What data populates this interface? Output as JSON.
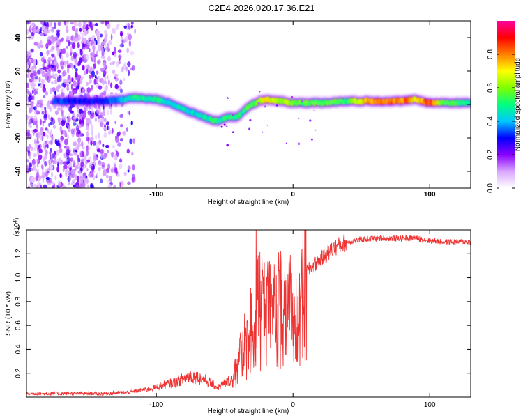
{
  "title": "C2E4.2026.020.17.36.E21",
  "chart_data": [
    {
      "type": "heatmap",
      "name": "spectrogram",
      "xlabel": "Height of straight line (km)",
      "ylabel": "Frequency (Hz)",
      "xlim": [
        -195,
        130
      ],
      "ylim": [
        -50,
        50
      ],
      "xticks": [
        "-100",
        "0",
        "100"
      ],
      "xtick_values": [
        -100,
        0,
        100
      ],
      "yticks": [
        "40",
        "20",
        "0",
        "-20",
        "-40"
      ],
      "ytick_values": [
        40,
        20,
        0,
        -20,
        -40
      ],
      "colorbar": {
        "label": "Normalized spectral amplitude",
        "range": [
          0,
          1
        ],
        "ticks": [
          "0.0",
          "0.2",
          "0.4",
          "0.6",
          "0.8"
        ],
        "tick_values": [
          0.0,
          0.2,
          0.4,
          0.6,
          0.8
        ],
        "colors": [
          "#ffffff",
          "#d9a6ff",
          "#8a00ff",
          "#0000ff",
          "#00c8ff",
          "#00ff80",
          "#80ff00",
          "#ffff00",
          "#ff8000",
          "#ff0000",
          "#ff00a0"
        ]
      },
      "ridge": {
        "x": [
          -195,
          -180,
          -160,
          -140,
          -125,
          -115,
          -100,
          -90,
          -80,
          -70,
          -60,
          -55,
          -50,
          -45,
          -40,
          -35,
          -30,
          -25,
          -20,
          -10,
          0,
          20,
          40,
          60,
          80,
          90,
          100,
          110,
          130
        ],
        "freq": [
          2,
          2,
          2,
          2,
          3,
          4,
          3,
          1,
          -3,
          -6,
          -9,
          -10,
          -8,
          -8,
          -7,
          -3,
          0,
          2,
          3,
          2,
          1,
          1,
          2,
          2,
          2,
          3,
          1,
          1,
          1
        ],
        "amplitude": [
          0.3,
          0.35,
          0.3,
          0.3,
          0.4,
          0.5,
          0.5,
          0.45,
          0.45,
          0.45,
          0.5,
          0.5,
          0.5,
          0.5,
          0.5,
          0.5,
          0.55,
          0.6,
          0.7,
          0.65,
          0.6,
          0.55,
          0.55,
          0.85,
          0.85,
          0.7,
          0.9,
          0.55,
          0.5
        ]
      }
    },
    {
      "type": "line",
      "name": "snr",
      "xlabel": "Height of straight line (km)",
      "ylabel": "SNR (10 * v/v)",
      "scale_label": "(x10",
      "scale_exp": "4",
      "scale_close": ")",
      "xlim": [
        -195,
        130
      ],
      "ylim": [
        0,
        14000
      ],
      "xticks": [
        "-100",
        "0",
        "100"
      ],
      "xtick_values": [
        -100,
        0,
        100
      ],
      "yticks": [
        "1.4",
        "1.2",
        "1.0",
        "0.8",
        "0.6",
        "0.4",
        "0.2"
      ],
      "ytick_values": [
        14000,
        12000,
        10000,
        8000,
        6000,
        4000,
        2000
      ],
      "color": "#ee3333",
      "envelope": {
        "x": [
          -195,
          -140,
          -120,
          -105,
          -95,
          -85,
          -75,
          -65,
          -55,
          -45,
          -40,
          -35,
          -30,
          -25,
          -20,
          -15,
          -10,
          -5,
          0,
          5,
          10,
          20,
          30,
          40,
          50,
          60,
          80,
          90,
          100,
          110,
          130
        ],
        "y": [
          300,
          300,
          400,
          700,
          1000,
          1300,
          1800,
          1500,
          800,
          1500,
          3500,
          5000,
          7000,
          8500,
          8500,
          7500,
          9000,
          8000,
          8500,
          9500,
          10500,
          11500,
          12500,
          13000,
          13200,
          13300,
          13300,
          13300,
          13100,
          13000,
          13000
        ]
      },
      "spike": {
        "x": -27,
        "y": 14200
      }
    }
  ]
}
